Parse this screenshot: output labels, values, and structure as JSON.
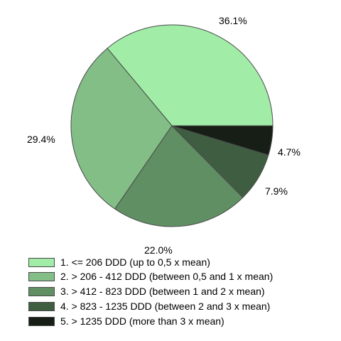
{
  "chart_data": {
    "type": "pie",
    "title": "",
    "values": [
      36.1,
      29.4,
      22.0,
      7.9,
      4.7
    ],
    "value_labels": [
      "36.1%",
      "29.4%",
      "22.0%",
      "7.9%",
      "4.7%"
    ],
    "categories": [
      "1. <= 206 DDD (up to 0,5 x mean)",
      "2. > 206 - 412 DDD (between 0,5 and 1 x mean)",
      "3. > 412 - 823 DDD (between 1 and 2 x mean)",
      "4. > 823 - 1235 DDD (between 2 and 3 x mean)",
      "5. > 1235 DDD (more than 3 x mean)"
    ],
    "colors": [
      "#a1eda7",
      "#83be87",
      "#5f8f63",
      "#3f5e41",
      "#161e16"
    ],
    "start": "3 o'clock, counter-clockwise",
    "legend": "bottom"
  }
}
